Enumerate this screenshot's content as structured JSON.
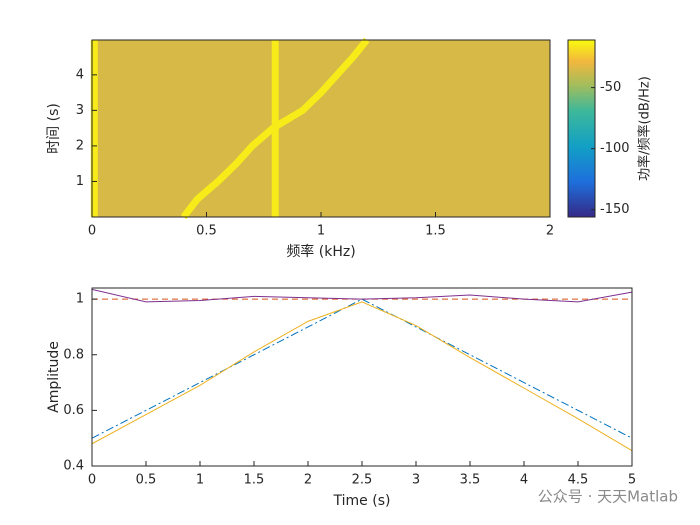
{
  "chart_data": [
    {
      "type": "spectrogram",
      "xlabel": "频率 (kHz)",
      "ylabel": "时间 (s)",
      "xlim": [
        0,
        2
      ],
      "xticks": [
        0,
        0.5,
        1,
        1.5,
        2
      ],
      "ylim": [
        0,
        4.98
      ],
      "yticks": [
        1,
        2,
        3,
        4
      ],
      "background_level": -35,
      "traces": [
        {
          "x": [
            0.01,
            0.01
          ],
          "y": [
            0,
            4.98
          ],
          "level": -15
        },
        {
          "x": [
            0.8,
            0.8
          ],
          "y": [
            0,
            4.98
          ],
          "level": -15
        },
        {
          "x": [
            0.4,
            0.46,
            0.55,
            0.63,
            0.7,
            0.79,
            0.92,
            1.0,
            1.07,
            1.14,
            1.2
          ],
          "y": [
            0,
            0.5,
            1,
            1.5,
            2,
            2.5,
            3,
            3.5,
            4,
            4.5,
            4.98
          ],
          "level": -15
        }
      ],
      "colormap": "parula",
      "clim": [
        -156,
        -11
      ],
      "cticks": [
        -50,
        -100,
        -150
      ],
      "clabel": "功率/频率(dB/Hz)"
    },
    {
      "type": "line",
      "xlabel": "Time (s)",
      "ylabel": "Amplitude",
      "x": [
        0,
        0.5,
        1,
        1.5,
        2,
        2.5,
        3,
        3.5,
        4,
        4.5,
        5
      ],
      "xlim": [
        0,
        5
      ],
      "xticks": [
        0,
        0.5,
        1,
        1.5,
        2,
        2.5,
        3,
        3.5,
        4,
        4.5,
        5
      ],
      "ylim": [
        0.4,
        1.04
      ],
      "yticks": [
        0.4,
        0.6,
        0.8,
        1
      ],
      "series": [
        {
          "color": "#d95319",
          "dash": "6 4",
          "values": [
            1,
            1,
            1,
            1,
            1,
            1,
            1,
            1,
            1,
            1,
            1
          ]
        },
        {
          "color": "#0072bd",
          "dash": "8 3 2 3",
          "values": [
            0.5,
            0.6,
            0.7,
            0.8,
            0.9,
            1.0,
            0.9,
            0.8,
            0.7,
            0.6,
            0.5
          ]
        },
        {
          "color": "#edb120",
          "dash": "none",
          "values": [
            0.48,
            0.585,
            0.69,
            0.81,
            0.92,
            0.99,
            0.905,
            0.79,
            0.68,
            0.57,
            0.455
          ]
        },
        {
          "color": "#7e2f8e",
          "dash": "none",
          "values": [
            1.035,
            0.99,
            0.995,
            1.01,
            1.005,
            1.0,
            1.005,
            1.015,
            1.0,
            0.99,
            1.025
          ]
        }
      ],
      "watermark": "公众号 · 天天Matlab"
    }
  ]
}
